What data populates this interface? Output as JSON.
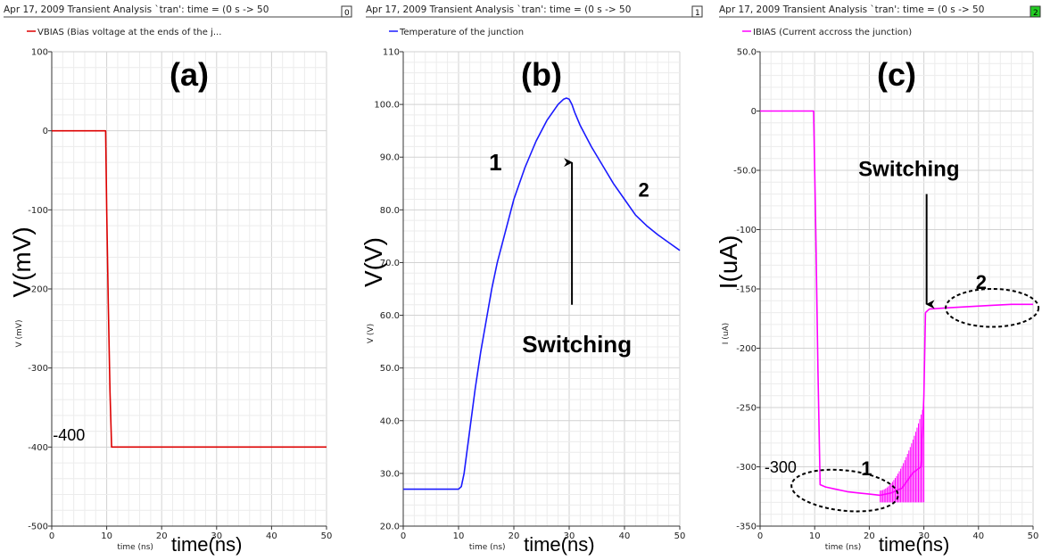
{
  "panels": [
    {
      "header": "Apr 17, 2009 Transient Analysis `tran': time = (0 s -> 50",
      "index_box": "0",
      "index_box_color": "#ffffff",
      "legend": "VBIAS (Bias voltage at the ends of the j...",
      "color": "#dd0000",
      "panel_label": "(a)",
      "y_axis_small": "V (mV)",
      "y_axis_big": "V(mV)",
      "x_axis_small": "time (ns)",
      "x_axis_big": "time(ns)",
      "annotations": [
        {
          "text": "-400",
          "x": 0.2,
          "y": -392,
          "size": 18,
          "bold": false
        }
      ],
      "ellipses": [],
      "arrows": []
    },
    {
      "header": "Apr 17, 2009 Transient Analysis `tran': time = (0 s -> 50",
      "index_box": "1",
      "index_box_color": "#ffffff",
      "legend": "Temperature of the junction",
      "color": "#1a1aff",
      "panel_label": "(b)",
      "y_axis_small": "V (V)",
      "y_axis_big": "V(V)",
      "x_axis_small": "time (ns)",
      "x_axis_big": "time(ns)",
      "annotations": [
        {
          "text": "1",
          "x": 15.5,
          "y": 87.5,
          "size": 26,
          "bold": true
        },
        {
          "text": "2",
          "x": 42.5,
          "y": 82.5,
          "size": 22,
          "bold": true
        },
        {
          "text": "Switching",
          "x": 21.5,
          "y": 53,
          "size": 26,
          "bold": true
        }
      ],
      "ellipses": [],
      "arrows": [
        {
          "x1": 30.5,
          "y1": 62,
          "x2": 30.5,
          "y2": 89
        }
      ]
    },
    {
      "header": "Apr 17, 2009 Transient Analysis `tran': time = (0 s -> 50",
      "index_box": "2",
      "index_box_color": "#22cc22",
      "legend": "IBIAS (Current accross the junction)",
      "color": "#ff00ff",
      "panel_label": "(c)",
      "y_axis_small": "I (uA)",
      "y_axis_big": "I(uA)",
      "x_axis_small": "time (ns)",
      "x_axis_big": "time(ns)",
      "annotations": [
        {
          "text": "-300",
          "x": 0.8,
          "y": -305,
          "size": 18,
          "bold": false
        },
        {
          "text": "1",
          "x": 18.5,
          "y": -307,
          "size": 22,
          "bold": true
        },
        {
          "text": "2",
          "x": 39.5,
          "y": -150,
          "size": 22,
          "bold": true
        },
        {
          "text": "Switching",
          "x": 18,
          "y": -55,
          "size": 24,
          "bold": true
        }
      ],
      "ellipses": [
        {
          "cx": 15.5,
          "cy": -320,
          "rx": 9.8,
          "ry": 17
        },
        {
          "cx": 42.5,
          "cy": -166,
          "rx": 8.5,
          "ry": 16
        }
      ],
      "arrows": [
        {
          "x1": 30.5,
          "y1": -70,
          "x2": 30.5,
          "y2": -163
        }
      ]
    }
  ],
  "chart_data": [
    {
      "type": "line",
      "title": "(a)",
      "xlabel": "time(ns)",
      "ylabel": "V(mV)",
      "xlim": [
        0,
        50
      ],
      "ylim": [
        -500,
        100
      ],
      "xticks": [
        0,
        10,
        20,
        30,
        40,
        50
      ],
      "yticks": [
        -500,
        -400,
        -300,
        -200,
        -100,
        0,
        100
      ],
      "ytick_labels": [
        "-500",
        "-400",
        "-300",
        "-200",
        "-100",
        "0",
        "100"
      ],
      "grid": true,
      "series": [
        {
          "name": "VBIAS (Bias voltage at the ends of the j...",
          "x": [
            0,
            9.8,
            10.0,
            10.3,
            10.6,
            10.9,
            50
          ],
          "y": [
            0,
            0,
            -100,
            -220,
            -330,
            -400,
            -400
          ]
        }
      ]
    },
    {
      "type": "line",
      "title": "(b)",
      "xlabel": "time(ns)",
      "ylabel": "V(V)",
      "xlim": [
        0,
        50
      ],
      "ylim": [
        20,
        110
      ],
      "xticks": [
        0,
        10,
        20,
        30,
        40,
        50
      ],
      "yticks": [
        20,
        30,
        40,
        50,
        60,
        70,
        80,
        90,
        100,
        110
      ],
      "ytick_labels": [
        "20.0",
        "30.0",
        "40.0",
        "50.0",
        "60.0",
        "70.0",
        "80.0",
        "90.0",
        "100.0",
        "110"
      ],
      "grid": true,
      "series": [
        {
          "name": "Temperature of the junction",
          "x": [
            0,
            10,
            10.5,
            11,
            12,
            13,
            14,
            15,
            16,
            17,
            18,
            19,
            20,
            22,
            24,
            26,
            28,
            29,
            29.5,
            30,
            30.5,
            31,
            32,
            34,
            36,
            38,
            40,
            42,
            44,
            46,
            48,
            50
          ],
          "y": [
            27,
            27,
            27.5,
            30,
            38,
            46,
            53,
            59,
            65,
            70,
            74,
            78,
            82,
            88,
            93,
            97,
            100,
            101,
            101.2,
            101,
            100,
            98.5,
            96,
            92,
            88.5,
            85,
            82,
            79,
            77,
            75.3,
            73.8,
            72.3
          ]
        }
      ]
    },
    {
      "type": "line",
      "title": "(c)",
      "xlabel": "time(ns)",
      "ylabel": "I(uA)",
      "xlim": [
        0,
        50
      ],
      "ylim": [
        -350,
        50
      ],
      "xticks": [
        0,
        10,
        20,
        30,
        40,
        50
      ],
      "yticks": [
        -350,
        -300,
        -250,
        -200,
        -150,
        -100,
        -50,
        0,
        50
      ],
      "ytick_labels": [
        "-350",
        "-300",
        "-250",
        "-200",
        "-150",
        "-100",
        "-50.0",
        "0",
        "50.0"
      ],
      "grid": true,
      "series": [
        {
          "name": "IBIAS (Current accross the junction)",
          "x": [
            0,
            9.8,
            10.2,
            10.6,
            11,
            12,
            14,
            16,
            18,
            20,
            22,
            24,
            26,
            28,
            29.5,
            30,
            30.3,
            31,
            34,
            38,
            42,
            46,
            50
          ],
          "y": [
            0,
            0,
            -100,
            -220,
            -315,
            -317,
            -319,
            -321,
            -322,
            -323,
            -324,
            -322,
            -318,
            -305,
            -300,
            -240,
            -170,
            -167,
            -166,
            -165,
            -164,
            -163,
            -163
          ]
        }
      ],
      "oscillation_band": {
        "x_start": 22,
        "x_end": 30,
        "y_low": -330,
        "y_high_start": -320,
        "y_high_end": -248
      }
    }
  ]
}
